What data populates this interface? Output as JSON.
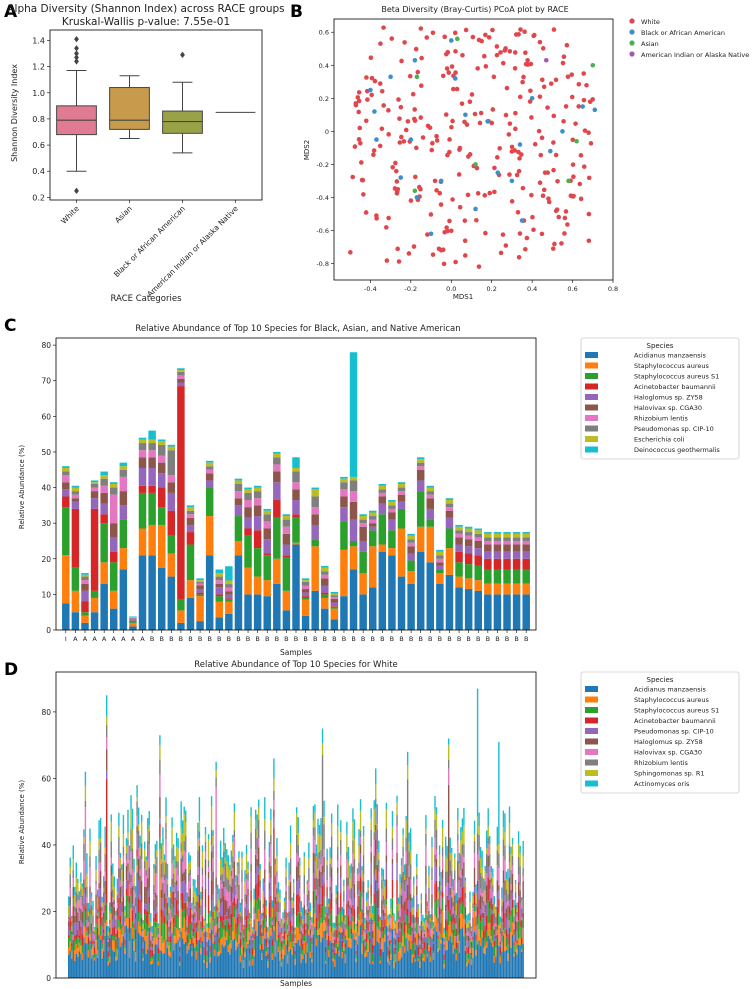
{
  "panel_labels": [
    "A",
    "B",
    "C",
    "D"
  ],
  "chart_data": [
    {
      "panel": "A",
      "type": "box",
      "title": "Alpha Diversity (Shannon Index) across RACE groups",
      "subtitle": "Kruskal-Wallis p-value: 7.55e-01",
      "xlabel": "RACE Categories",
      "ylabel": "Shannon Diversity Index",
      "ylim": [
        0.18,
        1.48
      ],
      "yticks": [
        "0.2",
        "0.4",
        "0.6",
        "0.8",
        "1.0",
        "1.2",
        "1.4"
      ],
      "categories": [
        "White",
        "Asian",
        "Black or African American",
        "American Indian or Alaska Native"
      ],
      "colors": [
        "#e07b93",
        "#c79a4c",
        "#9aa247",
        "#62a6a1"
      ],
      "boxes": [
        {
          "q1": 0.68,
          "median": 0.79,
          "q3": 0.9,
          "whisker_low": 0.4,
          "whisker_high": 1.17,
          "fliers": [
            0.25,
            1.24,
            1.27,
            1.3,
            1.34,
            1.41
          ]
        },
        {
          "q1": 0.72,
          "median": 0.79,
          "q3": 1.04,
          "whisker_low": 0.65,
          "whisker_high": 1.13,
          "fliers": []
        },
        {
          "q1": 0.69,
          "median": 0.78,
          "q3": 0.86,
          "whisker_low": 0.54,
          "whisker_high": 1.08,
          "fliers": [
            1.29
          ]
        },
        {
          "q1": 0.85,
          "median": 0.85,
          "q3": 0.85,
          "whisker_low": 0.85,
          "whisker_high": 0.85,
          "fliers": []
        }
      ]
    },
    {
      "panel": "B",
      "type": "scatter",
      "title": "Beta Diversity (Bray-Curtis) PCoA plot by RACE",
      "xlabel": "MDS1",
      "ylabel": "MDS2",
      "xlim": [
        -0.58,
        0.8
      ],
      "ylim": [
        -0.9,
        0.68
      ],
      "xticks": [
        "-0.4",
        "-0.2",
        "0.0",
        "0.2",
        "0.4",
        "0.6",
        "0.8"
      ],
      "yticks": [
        "-0.8",
        "-0.6",
        "-0.4",
        "-0.2",
        "0",
        "0.2",
        "0.4",
        "0.6"
      ],
      "legend_position": "outside-right",
      "groups": [
        {
          "name": "White",
          "color": "#e0474c",
          "n_points": 300,
          "seed": 11
        },
        {
          "name": "Black or African American",
          "color": "#3b8ed0",
          "n_points": 24,
          "seed": 23,
          "points": [
            [
              -0.4,
              0.25
            ],
            [
              -0.18,
              0.43
            ],
            [
              0.02,
              0.32
            ],
            [
              0.07,
              0.1
            ],
            [
              0.18,
              0.06
            ],
            [
              0.4,
              0.2
            ],
            [
              0.65,
              0.15
            ],
            [
              0.71,
              0.13
            ],
            [
              -0.37,
              -0.05
            ],
            [
              -0.2,
              -0.05
            ],
            [
              0.34,
              -0.08
            ],
            [
              0.49,
              -0.12
            ],
            [
              -0.25,
              -0.28
            ],
            [
              -0.17,
              -0.4
            ],
            [
              0.12,
              -0.47
            ],
            [
              0.35,
              -0.54
            ],
            [
              -0.05,
              -0.3
            ],
            [
              0.3,
              -0.3
            ],
            [
              -0.38,
              0.12
            ],
            [
              0.0,
              0.55
            ],
            [
              -0.1,
              -0.62
            ],
            [
              0.55,
              0.0
            ],
            [
              0.23,
              -0.25
            ],
            [
              -0.3,
              0.33
            ]
          ]
        },
        {
          "name": "Asian",
          "color": "#4caf50",
          "n_points": 7,
          "seed": 31,
          "points": [
            [
              -0.17,
              0.33
            ],
            [
              0.03,
              0.56
            ],
            [
              0.7,
              0.4
            ],
            [
              0.62,
              -0.06
            ],
            [
              -0.18,
              -0.36
            ],
            [
              0.58,
              -0.3
            ],
            [
              0.12,
              -0.2
            ]
          ]
        },
        {
          "name": "American Indian or Alaska Native",
          "color": "#9c5ab0",
          "n_points": 1,
          "seed": 41,
          "points": [
            [
              0.47,
              0.43
            ]
          ]
        }
      ]
    },
    {
      "panel": "C",
      "type": "bar",
      "stacked": true,
      "title": "Relative Abundance of Top 10 Species for Black, Asian, and Native American",
      "xlabel": "Samples",
      "ylabel": "Relative Abundance (%)",
      "ylim": [
        0,
        82
      ],
      "yticks": [
        "0",
        "10",
        "20",
        "30",
        "40",
        "50",
        "60",
        "70",
        "80"
      ],
      "legend_title": "Species",
      "legend_position": "outside-right",
      "species": [
        "Acidianus manzaensis",
        "Staphylococcus aureus",
        "Staphylococcus aureus S1",
        "Acinetobacter baumannii",
        "Haloglomus sp. ZY58",
        "Halovivax sp. CGA30",
        "Rhizobium lentis",
        "Pseudomonas sp. CIP-10",
        "Escherichia coli",
        "Deinococcus geothermalis"
      ],
      "colors": [
        "#1f77b4",
        "#ff7f0e",
        "#2ca02c",
        "#d62728",
        "#9467bd",
        "#8c564b",
        "#e377c2",
        "#7f7f7f",
        "#bcbd22",
        "#17becf"
      ],
      "categories": [
        "I",
        "A",
        "A",
        "A",
        "A",
        "A",
        "A",
        "A",
        "A",
        "B",
        "B",
        "B",
        "B",
        "B",
        "B",
        "B",
        "B",
        "B",
        "B",
        "B",
        "B",
        "B",
        "B",
        "B",
        "B",
        "B",
        "B",
        "B",
        "B",
        "B",
        "B",
        "B",
        "B",
        "B",
        "B",
        "B",
        "B",
        "B",
        "B",
        "B",
        "B",
        "B",
        "B",
        "B",
        "B",
        "B",
        "B",
        "B",
        "B"
      ],
      "series": [
        {
          "name": "Acidianus manzaensis",
          "values": [
            7.5,
            5,
            2,
            5,
            13,
            6,
            17,
            1,
            21,
            21,
            17.5,
            15,
            2,
            9,
            2.5,
            21,
            3.5,
            4.5,
            21,
            10,
            10,
            9.5,
            13,
            5.5,
            24,
            4,
            11,
            6,
            3,
            9.5,
            17,
            10,
            12,
            22,
            21,
            15,
            13,
            22,
            19,
            13,
            15.5,
            12,
            11.5,
            11,
            10,
            10,
            10,
            10,
            10
          ]
        },
        {
          "name": "Staphylococcus aureus",
          "values": [
            13.5,
            6,
            2,
            4,
            6,
            5,
            6,
            1,
            7.5,
            8.5,
            12,
            6.5,
            3.5,
            5,
            7,
            11,
            4.5,
            3.5,
            4,
            7.5,
            5,
            4.5,
            7,
            5.5,
            0.5,
            4.5,
            12.5,
            3,
            3,
            13,
            6.5,
            6,
            11.5,
            2,
            2,
            13.5,
            3.5,
            7,
            10,
            3,
            7.5,
            3,
            3,
            3,
            3,
            3,
            3,
            3,
            3
          ]
        },
        {
          "name": "Staphylococcus aureus S1",
          "values": [
            13.5,
            6.5,
            1,
            2,
            11,
            8,
            8,
            0.3,
            10,
            9,
            5,
            5,
            3,
            10,
            0.5,
            8,
            1.5,
            0.7,
            7,
            9,
            8,
            7,
            11.5,
            9.5,
            7,
            0.5,
            2,
            1,
            0.5,
            8,
            1.5,
            6,
            4.5,
            8.5,
            5,
            5.5,
            3,
            10,
            2,
            1,
            5.5,
            4,
            4,
            4,
            4,
            4,
            4,
            4,
            4
          ]
        },
        {
          "name": "Acinetobacter baumannii",
          "values": [
            3,
            16.5,
            3,
            23,
            2.5,
            3,
            0,
            0.3,
            2,
            2,
            5.5,
            7,
            60,
            3.5,
            0.5,
            0,
            0.5,
            0.2,
            0,
            2,
            5,
            0.5,
            5,
            0.5,
            1,
            0.5,
            0,
            0.5,
            0.2,
            0,
            0,
            0,
            0,
            0,
            0,
            0,
            0,
            0,
            0,
            0,
            0,
            3,
            3,
            3,
            3,
            3,
            3,
            3,
            3
          ]
        },
        {
          "name": "Haloglomus sp. ZY58",
          "values": [
            2,
            2,
            3,
            3,
            3,
            4,
            4,
            0.2,
            5,
            5,
            4,
            5,
            1,
            2,
            1,
            2,
            2,
            1,
            3,
            3,
            4,
            4,
            5,
            3,
            4,
            1,
            4,
            2,
            1,
            4,
            6,
            3,
            1,
            3,
            3,
            2,
            2,
            3,
            3,
            1,
            3,
            2,
            2,
            2,
            2,
            2,
            2,
            2,
            2
          ]
        },
        {
          "name": "Halovivax sp. CGA30",
          "values": [
            2,
            1,
            2,
            2,
            3,
            4,
            4,
            0.2,
            3,
            3,
            3,
            3,
            1,
            2,
            1,
            2,
            1,
            1,
            2,
            3,
            3,
            3,
            3,
            3,
            3,
            1,
            3,
            2,
            1,
            3,
            5,
            4,
            1,
            2,
            2,
            2,
            2,
            3,
            3,
            1,
            2,
            2,
            2,
            2,
            2,
            2,
            2,
            2,
            2
          ]
        },
        {
          "name": "Rhizobium lentis",
          "values": [
            2,
            1,
            1,
            1,
            2,
            8,
            4,
            0.2,
            2,
            2,
            2,
            2,
            1,
            1,
            0.5,
            1,
            1,
            1,
            2,
            2,
            2,
            2,
            2,
            2,
            2,
            1,
            2,
            1,
            0.5,
            2,
            3,
            1,
            1,
            1,
            1,
            1,
            1,
            1,
            1,
            1,
            1,
            1,
            1,
            1,
            1,
            1,
            1,
            1,
            1
          ]
        },
        {
          "name": "Pseudomonas sp. CIP-10",
          "values": [
            1,
            1,
            1,
            1,
            2,
            2,
            2,
            0.2,
            2,
            2,
            3,
            7,
            1,
            1,
            0.5,
            1,
            1,
            1,
            2,
            2,
            2,
            2,
            2,
            2,
            3,
            1,
            3,
            1,
            0.5,
            2,
            3,
            1,
            1,
            1,
            1,
            1,
            1,
            1,
            1,
            1,
            1,
            1,
            1,
            1,
            1,
            1,
            1,
            1,
            1
          ]
        },
        {
          "name": "Escherichia coli",
          "values": [
            1,
            1,
            0.5,
            0.5,
            1,
            1,
            1,
            0.2,
            1,
            1,
            1,
            1,
            0.5,
            1,
            0.5,
            1,
            1,
            1,
            1,
            1,
            1,
            1,
            1,
            1,
            1,
            0.5,
            2,
            1,
            0.5,
            1,
            1,
            1,
            1,
            1,
            1,
            1,
            1,
            1,
            1,
            1,
            1,
            1,
            1,
            1,
            1,
            1,
            1,
            1,
            1
          ]
        },
        {
          "name": "Deinococcus geothermalis",
          "values": [
            0.5,
            0.5,
            0.5,
            0.5,
            1,
            0.5,
            1,
            0.2,
            0.5,
            2.5,
            0.5,
            0.5,
            0.5,
            0.5,
            0.5,
            0.5,
            1,
            4,
            0.5,
            0.5,
            0.5,
            0.5,
            0.5,
            0.5,
            3,
            0.5,
            0.5,
            0.5,
            0.5,
            0.5,
            35,
            0.5,
            0.5,
            0.5,
            0.5,
            0.5,
            0.5,
            0.5,
            0.5,
            0.5,
            0.5,
            0.5,
            0.5,
            0.5,
            0.5,
            0.5,
            0.5,
            0.5,
            0.5
          ]
        }
      ]
    },
    {
      "panel": "D",
      "type": "bar",
      "stacked": true,
      "title": "Relative Abundance of Top 10 Species for White",
      "xlabel": "Samples",
      "ylabel": "Relative Abundance (%)",
      "ylim": [
        0,
        92
      ],
      "yticks": [
        "0",
        "20",
        "40",
        "60",
        "80"
      ],
      "legend_title": "Species",
      "legend_position": "outside-right",
      "species": [
        "Acidianus manzaensis",
        "Staphylococcus aureus",
        "Staphylococcus aureus S1",
        "Acinetobacter baumannii",
        "Pseudomonas sp. CIP-10",
        "Haloglomus sp. ZY58",
        "Halovivax sp. CGA30",
        "Rhizobium lentis",
        "Sphingomonas sp. R1",
        "Actinomyces oris"
      ],
      "colors": [
        "#1f77b4",
        "#ff7f0e",
        "#2ca02c",
        "#d62728",
        "#9467bd",
        "#8c564b",
        "#e377c2",
        "#7f7f7f",
        "#bcbd22",
        "#17becf"
      ],
      "n_samples": 300,
      "typical_total_range": [
        15,
        55
      ],
      "peaks": [
        [
          25,
          85
        ],
        [
          60,
          73
        ],
        [
          11,
          62
        ],
        [
          97,
          65
        ],
        [
          167,
          75
        ],
        [
          269,
          87
        ],
        [
          250,
          72
        ],
        [
          283,
          71
        ],
        [
          135,
          66
        ],
        [
          202,
          63
        ],
        [
          45,
          58
        ],
        [
          223,
          68
        ]
      ],
      "seed": 7
    }
  ]
}
